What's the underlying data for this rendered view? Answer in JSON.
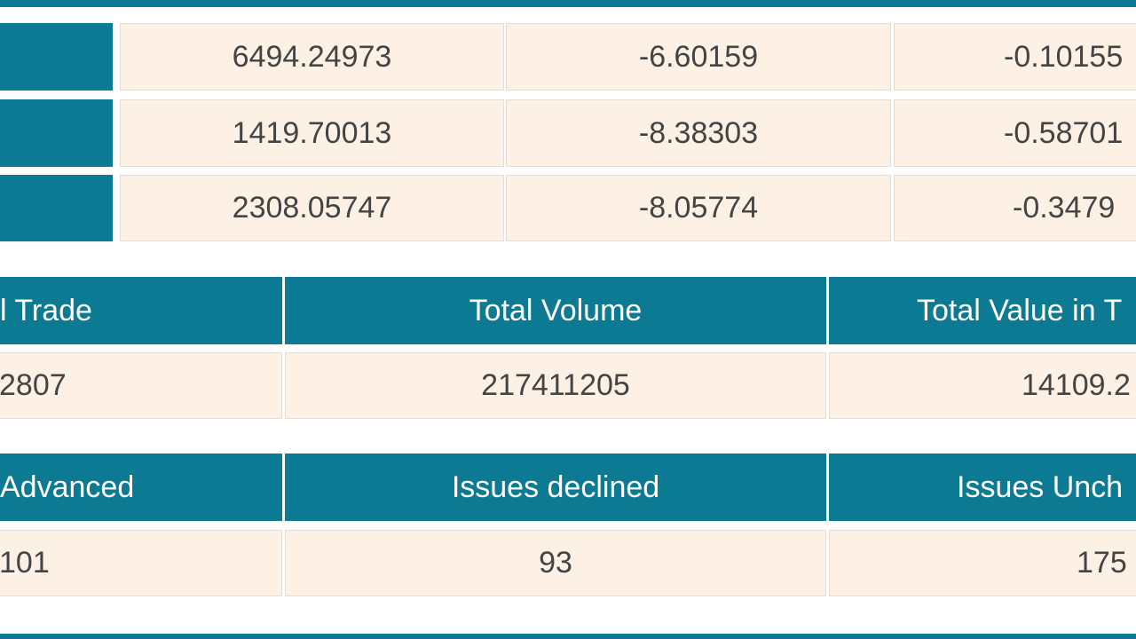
{
  "index_table": {
    "rows": [
      [
        "6494.24973",
        "-6.60159",
        "-0.10155"
      ],
      [
        "1419.70013",
        "-8.38303",
        "-0.58701"
      ],
      [
        "2308.05747",
        "-8.05774",
        "-0.3479"
      ]
    ]
  },
  "trade_table": {
    "headers": [
      "l Trade",
      "Total Volume",
      "Total Value in T"
    ],
    "values": [
      "2807",
      "217411205",
      "14109.2"
    ]
  },
  "issues_table": {
    "headers": [
      "Advanced",
      "Issues declined",
      "Issues Unch"
    ],
    "values": [
      "101",
      "93",
      "175"
    ]
  }
}
